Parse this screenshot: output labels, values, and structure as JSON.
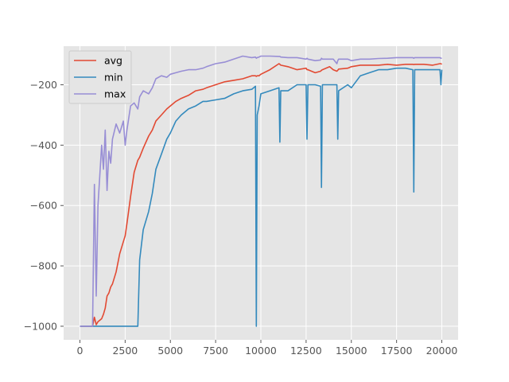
{
  "chart_data": {
    "type": "line",
    "title": "",
    "xlabel": "",
    "ylabel": "",
    "xlim": [
      -900,
      20900
    ],
    "ylim": [
      -1045,
      -72
    ],
    "grid": true,
    "legend_position": "top-left",
    "x_ticks": [
      0,
      2500,
      5000,
      7500,
      10000,
      12500,
      15000,
      17500,
      20000
    ],
    "x_tick_labels": [
      "0",
      "2500",
      "5000",
      "7500",
      "10000",
      "12500",
      "15000",
      "17500",
      "20000"
    ],
    "y_ticks": [
      -1000,
      -800,
      -600,
      -400,
      -200
    ],
    "y_tick_labels": [
      "−1000",
      "−800",
      "−600",
      "−400",
      "−200"
    ],
    "x": [
      0,
      500,
      700,
      800,
      900,
      1000,
      1200,
      1300,
      1400,
      1500,
      1600,
      1700,
      1800,
      2000,
      2200,
      2400,
      2500,
      2600,
      2800,
      3000,
      3200,
      3300,
      3500,
      3800,
      4000,
      4200,
      4500,
      4800,
      5000,
      5300,
      5600,
      6000,
      6400,
      6800,
      7000,
      7500,
      8000,
      8500,
      9000,
      9500,
      9700,
      9750,
      9800,
      9900,
      10000,
      10500,
      11000,
      11050,
      11100,
      11500,
      12000,
      12500,
      12550,
      12600,
      13000,
      13300,
      13350,
      13400,
      13800,
      14000,
      14200,
      14250,
      14300,
      14800,
      15000,
      15500,
      16000,
      16500,
      17000,
      17500,
      18000,
      18400,
      18450,
      18500,
      19000,
      19500,
      19900,
      19950,
      20000
    ],
    "series": [
      {
        "name": "avg",
        "color": "#E24A33",
        "values": [
          -1000,
          -1000,
          -1000,
          -970,
          -995,
          -985,
          -975,
          -960,
          -940,
          -900,
          -890,
          -870,
          -860,
          -820,
          -760,
          -720,
          -700,
          -660,
          -570,
          -490,
          -450,
          -440,
          -410,
          -370,
          -350,
          -320,
          -300,
          -280,
          -270,
          -255,
          -245,
          -235,
          -220,
          -215,
          -210,
          -200,
          -190,
          -185,
          -180,
          -170,
          -170,
          -172,
          -170,
          -170,
          -165,
          -150,
          -130,
          -132,
          -135,
          -140,
          -150,
          -145,
          -150,
          -150,
          -160,
          -155,
          -152,
          -150,
          -140,
          -150,
          -155,
          -152,
          -148,
          -145,
          -140,
          -135,
          -135,
          -135,
          -132,
          -135,
          -132,
          -132,
          -133,
          -132,
          -132,
          -135,
          -130,
          -130,
          -132
        ]
      },
      {
        "name": "min",
        "color": "#348ABD",
        "values": [
          -1000,
          -1000,
          -1000,
          -1000,
          -1000,
          -1000,
          -1000,
          -1000,
          -1000,
          -1000,
          -1000,
          -1000,
          -1000,
          -1000,
          -1000,
          -1000,
          -1000,
          -1000,
          -1000,
          -1000,
          -1000,
          -780,
          -680,
          -620,
          -560,
          -480,
          -430,
          -380,
          -360,
          -320,
          -300,
          -280,
          -270,
          -255,
          -255,
          -250,
          -245,
          -230,
          -220,
          -215,
          -205,
          -1000,
          -300,
          -270,
          -230,
          -220,
          -210,
          -390,
          -220,
          -220,
          -200,
          -200,
          -380,
          -200,
          -200,
          -205,
          -540,
          -200,
          -200,
          -200,
          -200,
          -380,
          -220,
          -200,
          -210,
          -170,
          -160,
          -150,
          -150,
          -145,
          -145,
          -150,
          -555,
          -150,
          -150,
          -150,
          -150,
          -200,
          -150
        ]
      },
      {
        "name": "max",
        "color": "#988ED5",
        "values": [
          -1000,
          -1000,
          -1000,
          -530,
          -900,
          -600,
          -400,
          -480,
          -350,
          -550,
          -420,
          -460,
          -380,
          -330,
          -360,
          -320,
          -400,
          -350,
          -270,
          -260,
          -280,
          -240,
          -220,
          -230,
          -210,
          -180,
          -170,
          -175,
          -165,
          -160,
          -155,
          -150,
          -150,
          -145,
          -140,
          -130,
          -125,
          -115,
          -105,
          -110,
          -108,
          -112,
          -110,
          -108,
          -105,
          -105,
          -106,
          -106,
          -108,
          -110,
          -110,
          -115,
          -112,
          -115,
          -120,
          -118,
          -112,
          -115,
          -115,
          -115,
          -130,
          -120,
          -115,
          -115,
          -120,
          -115,
          -115,
          -113,
          -112,
          -110,
          -110,
          -110,
          -112,
          -110,
          -110,
          -110,
          -110,
          -112,
          -112
        ]
      }
    ]
  }
}
